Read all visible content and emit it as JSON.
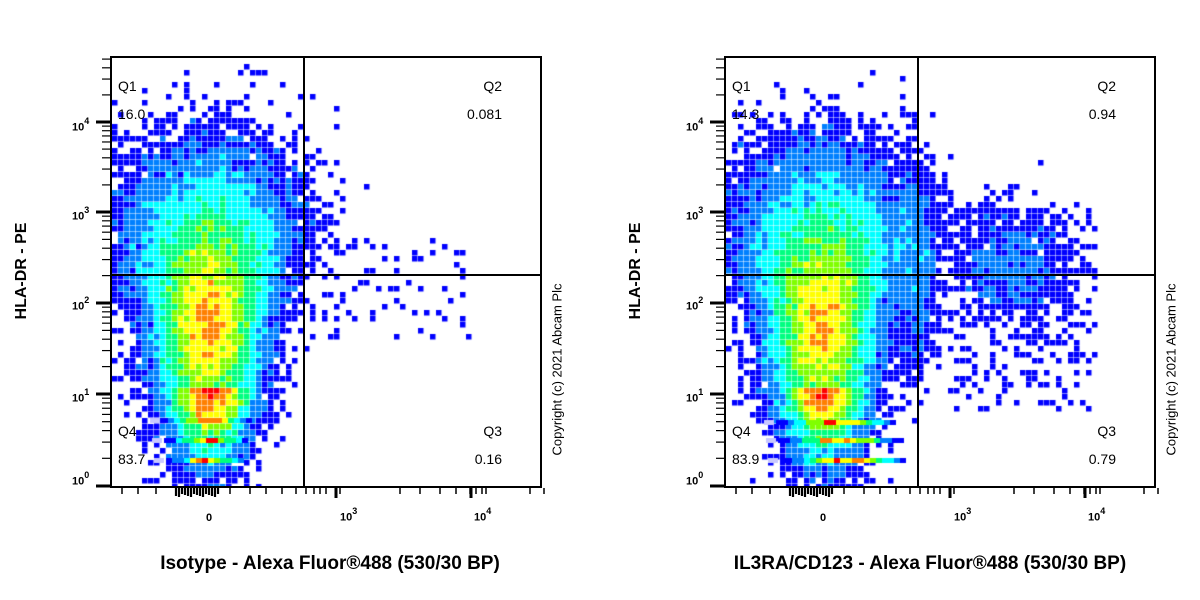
{
  "figure": {
    "copyright": "Copyright (c) 2021 Abcam Plc"
  },
  "chart_data": [
    {
      "type": "scatter",
      "subtype": "flow-cytometry-density-dot-plot",
      "title": "",
      "xlabel": "Isotype - Alexa Fluor®488 (530/30 BP)",
      "ylabel": "HLA-DR - PE",
      "x_scale": "biexponential",
      "y_scale": "log",
      "x_ticks": [
        "0",
        "10^3",
        "10^4"
      ],
      "y_ticks": [
        "10^0",
        "10^1",
        "10^2",
        "10^3",
        "10^4"
      ],
      "ylim": [
        1,
        50000
      ],
      "gate": {
        "x_threshold": 550,
        "y_threshold": 200
      },
      "quadrants": [
        {
          "name": "Q1",
          "percent": "16.0",
          "position": "top-left"
        },
        {
          "name": "Q2",
          "percent": "0.081",
          "position": "top-right"
        },
        {
          "name": "Q3",
          "percent": "0.16",
          "position": "bottom-right"
        },
        {
          "name": "Q4",
          "percent": "83.7",
          "position": "bottom-left"
        }
      ],
      "population": {
        "center_x": 0,
        "center_y": 60,
        "peak_color": "#ff0000"
      },
      "copyright": "Copyright (c) 2021 Abcam Plc"
    },
    {
      "type": "scatter",
      "subtype": "flow-cytometry-density-dot-plot",
      "title": "",
      "xlabel": "IL3RA/CD123 - Alexa Fluor®488 (530/30 BP)",
      "ylabel": "HLA-DR - PE",
      "x_scale": "biexponential",
      "y_scale": "log",
      "x_ticks": [
        "0",
        "10^3",
        "10^4"
      ],
      "y_ticks": [
        "10^0",
        "10^1",
        "10^2",
        "10^3",
        "10^4"
      ],
      "ylim": [
        1,
        50000
      ],
      "gate": {
        "x_threshold": 550,
        "y_threshold": 200
      },
      "quadrants": [
        {
          "name": "Q1",
          "percent": "14.3",
          "position": "top-left"
        },
        {
          "name": "Q2",
          "percent": "0.94",
          "position": "top-right"
        },
        {
          "name": "Q3",
          "percent": "0.79",
          "position": "bottom-right"
        },
        {
          "name": "Q4",
          "percent": "83.9",
          "position": "bottom-left"
        }
      ],
      "population": {
        "center_x": 0,
        "center_y": 60,
        "peak_color": "#ff0000",
        "secondary_cluster_x": 2000,
        "secondary_cluster_y": 200
      },
      "copyright": "Copyright (c) 2021 Abcam Plc"
    }
  ],
  "colors": {
    "density_scale": [
      "#0000ff",
      "#0080ff",
      "#00ffff",
      "#00ff80",
      "#80ff00",
      "#ffff00",
      "#ff8000",
      "#ff0000"
    ],
    "low_density_pale": "#c8c8ff",
    "axis": "#000000"
  }
}
